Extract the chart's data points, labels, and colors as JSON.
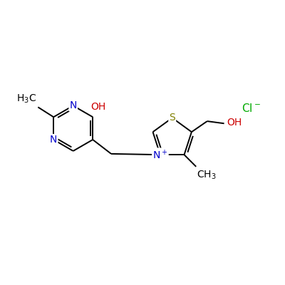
{
  "bg_color": "#ffffff",
  "bond_color": "#000000",
  "N_color": "#0000cc",
  "O_color": "#cc0000",
  "S_color": "#808000",
  "Cl_color": "#00aa00",
  "line_width": 1.4,
  "font_size": 10,
  "figsize": [
    4.0,
    4.0
  ],
  "dpi": 100,
  "xlim": [
    0,
    10
  ],
  "ylim": [
    0,
    10
  ]
}
